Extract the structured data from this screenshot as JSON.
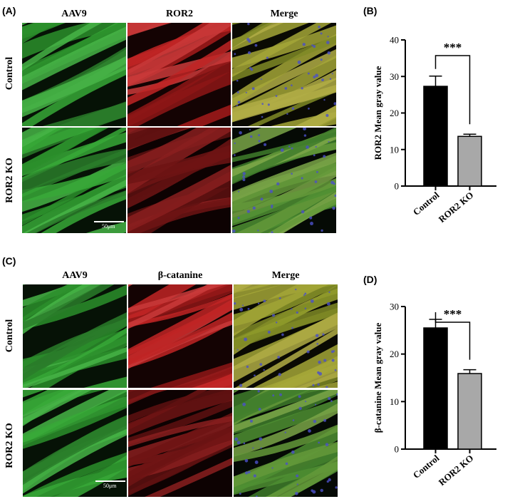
{
  "panel_a": {
    "letter": "(A)",
    "columns": [
      "AAV9",
      "ROR2",
      "Merge"
    ],
    "rows": [
      "Control",
      "ROR2 KO"
    ],
    "scale_label": "50μm"
  },
  "panel_c": {
    "letter": "(C)",
    "columns": [
      "AAV9",
      "β-catanine",
      "Merge"
    ],
    "rows": [
      "Control",
      "ROR2 KO"
    ],
    "scale_label": "50μm"
  },
  "colors": {
    "green": "#2f9e2f",
    "red": "#b01e1e",
    "merge": "#8f9a2a",
    "bar_control": "#000000",
    "bar_ko": "#a8a8a8"
  },
  "chart_data": [
    {
      "letter": "(B)",
      "type": "bar",
      "categories": [
        "Control",
        "ROR2 KO"
      ],
      "values": [
        27.3,
        13.6
      ],
      "errors": [
        2.8,
        0.6
      ],
      "ylabel": "ROR2 Mean gray value",
      "ylim": [
        0,
        40
      ],
      "yticks": [
        0,
        10,
        20,
        30,
        40
      ],
      "significance": "***"
    },
    {
      "letter": "(D)",
      "type": "bar",
      "categories": [
        "Control",
        "ROR2 KO"
      ],
      "values": [
        25.5,
        15.9
      ],
      "errors": [
        1.8,
        0.8
      ],
      "ylabel": "β-catanine Mean gray value",
      "ylim": [
        0,
        30
      ],
      "yticks": [
        0,
        10,
        20,
        30
      ],
      "significance": "***"
    }
  ]
}
